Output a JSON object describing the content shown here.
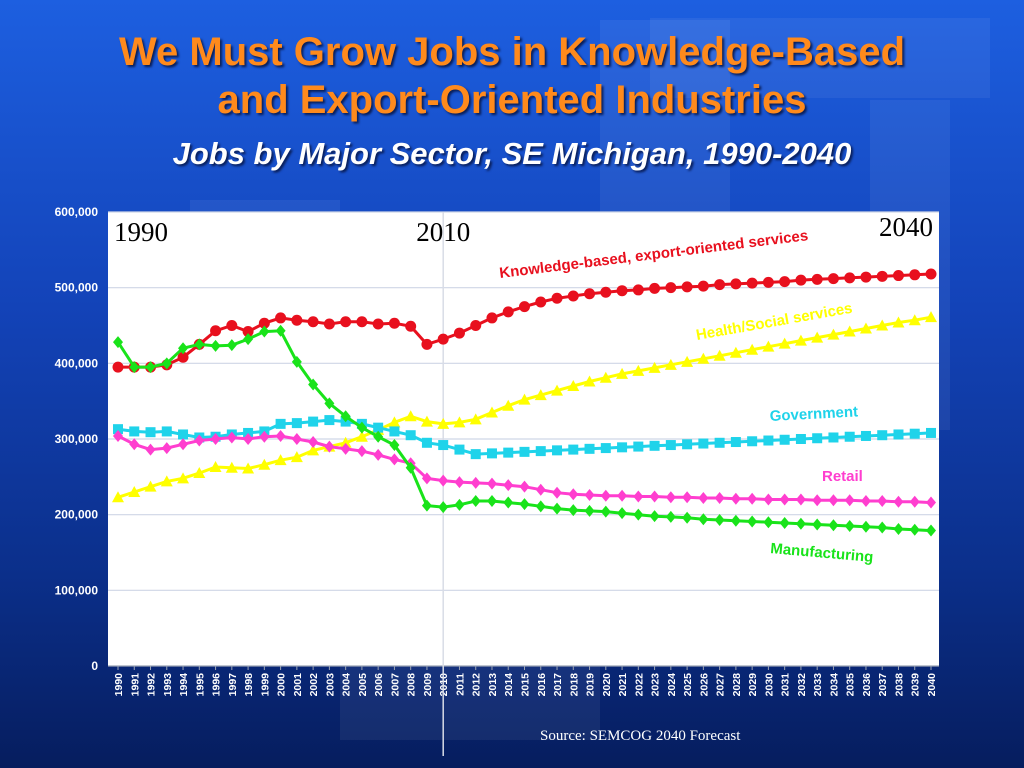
{
  "title_line1": "We Must Grow Jobs in Knowledge-Based",
  "title_line2": "and Export-Oriented Industries",
  "subtitle": "Jobs by Major Sector, SE Michigan, 1990-2040",
  "source": "Source: SEMCOG 2040 Forecast",
  "chart_data": {
    "type": "line",
    "x": [
      1990,
      1991,
      1992,
      1993,
      1994,
      1995,
      1996,
      1997,
      1998,
      1999,
      2000,
      2001,
      2002,
      2003,
      2004,
      2005,
      2006,
      2007,
      2008,
      2009,
      2010,
      2011,
      2012,
      2013,
      2014,
      2015,
      2016,
      2017,
      2018,
      2019,
      2020,
      2021,
      2022,
      2023,
      2024,
      2025,
      2026,
      2027,
      2028,
      2029,
      2030,
      2031,
      2032,
      2033,
      2034,
      2035,
      2036,
      2037,
      2038,
      2039,
      2040
    ],
    "x_tick_labels": [
      "1990",
      "1991",
      "1992",
      "1993",
      "1994",
      "1995",
      "1996",
      "1997",
      "1998",
      "1999",
      "2000",
      "2001",
      "2002",
      "2003",
      "2004",
      "2005",
      "2006",
      "2007",
      "2008",
      "2009",
      "2010",
      "2011",
      "2012",
      "2013",
      "2014",
      "2015",
      "2016",
      "2017",
      "2018",
      "2019",
      "2020",
      "2021",
      "2022",
      "2023",
      "2024",
      "2025",
      "2026",
      "2027",
      "2028",
      "2029",
      "2030",
      "2031",
      "2032",
      "2033",
      "2034",
      "2035",
      "2036",
      "2037",
      "2038",
      "2039",
      "2040"
    ],
    "y_tick_labels": [
      "0",
      "100,000",
      "200,000",
      "300,000",
      "400,000",
      "500,000",
      "600,000"
    ],
    "ylim": [
      0,
      600000
    ],
    "grid": true,
    "vertical_markers": [
      {
        "x": 1990,
        "label": "1990"
      },
      {
        "x": 2010,
        "label": "2010"
      },
      {
        "x": 2040,
        "label": "2040"
      }
    ],
    "series": [
      {
        "name": "Knowledge-based, export-oriented services",
        "color": "#e8101e",
        "marker": "circle",
        "values": [
          395000,
          395000,
          395000,
          398000,
          408000,
          425000,
          443000,
          450000,
          442000,
          453000,
          460000,
          457000,
          455000,
          452000,
          455000,
          455000,
          452000,
          453000,
          449000,
          425000,
          432000,
          440000,
          450000,
          460000,
          468000,
          475000,
          481000,
          486000,
          489000,
          492000,
          494000,
          496000,
          497000,
          499000,
          500000,
          501000,
          502000,
          504000,
          505000,
          506000,
          507000,
          508000,
          510000,
          511000,
          512000,
          513000,
          514000,
          515000,
          516000,
          517000,
          518000
        ]
      },
      {
        "name": "Health/Social services",
        "color": "#ffff00",
        "marker": "triangle",
        "values": [
          223000,
          230000,
          237000,
          244000,
          248000,
          255000,
          263000,
          262000,
          261000,
          266000,
          272000,
          276000,
          285000,
          290000,
          295000,
          303000,
          312000,
          322000,
          330000,
          323000,
          320000,
          322000,
          326000,
          335000,
          344000,
          352000,
          358000,
          364000,
          370000,
          376000,
          381000,
          386000,
          390000,
          394000,
          398000,
          402000,
          406000,
          410000,
          414000,
          418000,
          422000,
          426000,
          430000,
          434000,
          438000,
          442000,
          446000,
          450000,
          454000,
          457000,
          461000
        ]
      },
      {
        "name": "Government",
        "color": "#1fd3ea",
        "marker": "square",
        "values": [
          313000,
          310000,
          309000,
          310000,
          306000,
          302000,
          303000,
          306000,
          308000,
          310000,
          320000,
          321000,
          323000,
          325000,
          323000,
          320000,
          315000,
          310000,
          305000,
          295000,
          292000,
          286000,
          280000,
          281000,
          282000,
          283000,
          284000,
          285000,
          286000,
          287000,
          288000,
          289000,
          290000,
          291000,
          292000,
          293000,
          294000,
          295000,
          296000,
          297000,
          298000,
          299000,
          300000,
          301000,
          302000,
          303000,
          304000,
          305000,
          306000,
          307000,
          308000
        ]
      },
      {
        "name": "Retail",
        "color": "#ff3ecf",
        "marker": "diamond",
        "values": [
          304000,
          293000,
          286000,
          288000,
          293000,
          298000,
          300000,
          302000,
          300000,
          303000,
          304000,
          300000,
          296000,
          290000,
          287000,
          284000,
          279000,
          273000,
          268000,
          248000,
          245000,
          243000,
          242000,
          241000,
          239000,
          237000,
          233000,
          229000,
          227000,
          226000,
          225000,
          225000,
          224000,
          224000,
          223000,
          223000,
          222000,
          222000,
          221000,
          221000,
          220000,
          220000,
          220000,
          219000,
          219000,
          219000,
          218000,
          218000,
          217000,
          217000,
          216000
        ]
      },
      {
        "name": "Manufacturing",
        "color": "#19e31a",
        "marker": "diamond",
        "values": [
          428000,
          395000,
          395000,
          400000,
          420000,
          425000,
          423000,
          424000,
          432000,
          442000,
          443000,
          402000,
          372000,
          347000,
          330000,
          315000,
          303000,
          292000,
          262000,
          212000,
          210000,
          213000,
          218000,
          218000,
          216000,
          214000,
          211000,
          208000,
          206000,
          205000,
          204000,
          202000,
          200000,
          198000,
          197000,
          196000,
          194000,
          193000,
          192000,
          191000,
          190000,
          189000,
          188000,
          187000,
          186000,
          185000,
          184000,
          183000,
          181000,
          180000,
          179000
        ]
      }
    ]
  }
}
